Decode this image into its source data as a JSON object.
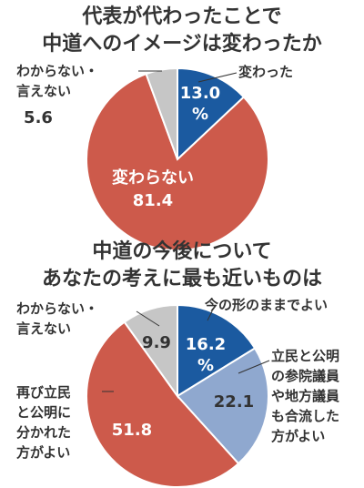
{
  "chart_data": [
    {
      "type": "pie",
      "title_lines": [
        "代表が代わったことで",
        "中道へのイメージは変わったか"
      ],
      "slices": [
        {
          "label": "変わった",
          "value_text": "13.0%",
          "value": 13.0,
          "color": "#1b5aa0"
        },
        {
          "label": "変わらない",
          "value_text": "81.4",
          "value": 81.4,
          "color": "#cd5a4b"
        },
        {
          "label": "わからない・言えない",
          "value_text": "5.6",
          "value": 5.6,
          "color": "#c6c6c6"
        }
      ]
    },
    {
      "type": "pie",
      "title_lines": [
        "中道の今後について",
        "あなたの考えに最も近いものは"
      ],
      "slices": [
        {
          "label": "今の形のままでよい",
          "value_text": "16.2%",
          "value": 16.2,
          "color": "#1b5aa0"
        },
        {
          "label": "立民と公明の参院議員や地方議員も合流した方がよい",
          "value_text": "22.1",
          "value": 22.1,
          "color": "#8fa8cf"
        },
        {
          "label": "再び立民と公明に分かれた方がよい",
          "value_text": "51.8",
          "value": 51.8,
          "color": "#cd5a4b"
        },
        {
          "label": "わからない・言えない",
          "value_text": "9.9",
          "value": 9.9,
          "color": "#c6c6c6"
        }
      ]
    }
  ],
  "text": {
    "c1_title_1": "代表が代わったことで",
    "c1_title_2": "中道へのイメージは変わったか",
    "c1_l_changed": "変わった",
    "c1_v_changed_1": "13.0",
    "c1_v_changed_2": "%",
    "c1_l_unchanged": "変わらない",
    "c1_v_unchanged": "81.4",
    "c1_l_unknown_1": "わからない・",
    "c1_l_unknown_2": "言えない",
    "c1_v_unknown": "5.6",
    "c2_title_1": "中道の今後について",
    "c2_title_2": "あなたの考えに最も近いものは",
    "c2_l_current": "今の形のままでよい",
    "c2_v_current_1": "16.2",
    "c2_v_current_2": "%",
    "c2_l_merge_1": "立民と公明",
    "c2_l_merge_2": "の参院議員",
    "c2_l_merge_3": "や地方議員",
    "c2_l_merge_4": "も合流した",
    "c2_l_merge_5": "方がよい",
    "c2_v_merge": "22.1",
    "c2_l_split_1": "再び立民",
    "c2_l_split_2": "と公明に",
    "c2_l_split_3": "分かれた",
    "c2_l_split_4": "方がよい",
    "c2_v_split": "51.8",
    "c2_l_unknown_1": "わからない・",
    "c2_l_unknown_2": "言えない",
    "c2_v_unknown": "9.9"
  }
}
